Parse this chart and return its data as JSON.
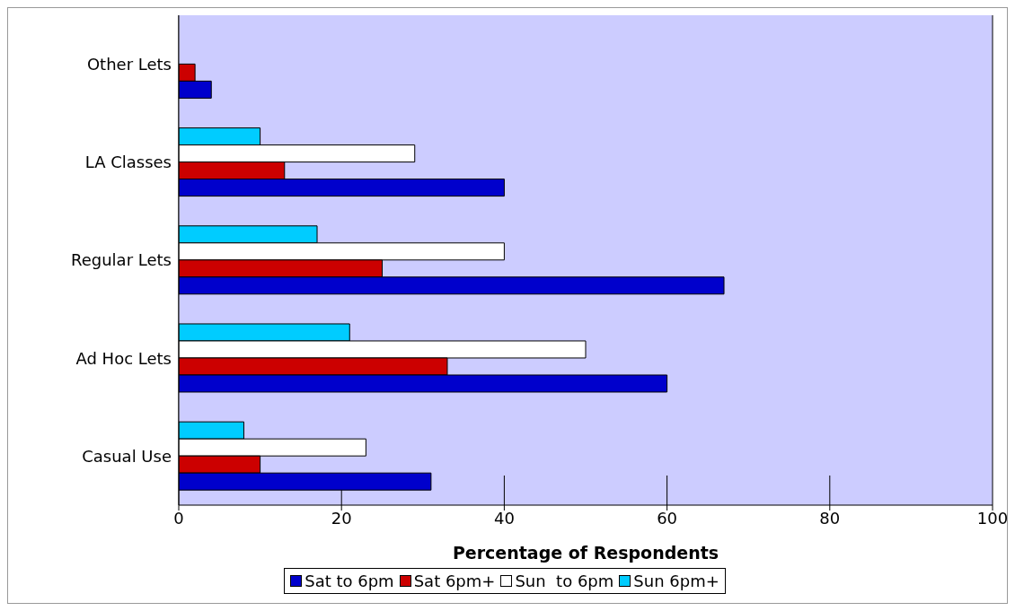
{
  "chart_data": {
    "type": "bar",
    "orientation": "horizontal",
    "xlabel": "Percentage of Respondents",
    "categories": [
      "Other Lets",
      "LA Classes",
      "Regular Lets",
      "Ad Hoc Lets",
      "Casual Use"
    ],
    "series": [
      {
        "name": "Sat to 6pm",
        "color": "#0000cc",
        "values": [
          4,
          40,
          67,
          60,
          31
        ]
      },
      {
        "name": "Sat 6pm+",
        "color": "#cc0000",
        "values": [
          2,
          13,
          25,
          33,
          10
        ]
      },
      {
        "name": "Sun  to 6pm",
        "color": "#ffffff",
        "values": [
          null,
          29,
          40,
          50,
          23
        ]
      },
      {
        "name": "Sun 6pm+",
        "color": "#00ccff",
        "values": [
          null,
          10,
          17,
          21,
          8
        ]
      }
    ],
    "xlim": [
      0,
      100
    ],
    "xticks": [
      0,
      20,
      40,
      60,
      80,
      100
    ],
    "grid": "x",
    "legend": "bottom"
  }
}
